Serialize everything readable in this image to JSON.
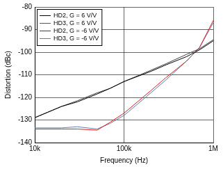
{
  "chart_data": {
    "type": "line",
    "x_label": "Frequency (Hz)",
    "y_label": "Distortion (dBc)",
    "log": "x",
    "grid": true,
    "legend": "top-left",
    "xlim": [
      10000,
      1000000
    ],
    "xticks": [
      {
        "value": 10000,
        "label": "10k"
      },
      {
        "value": 100000,
        "label": "100k"
      },
      {
        "value": 1000000,
        "label": "1M"
      }
    ],
    "ylim": [
      -140,
      -80
    ],
    "yticks": [
      -140,
      -130,
      -120,
      -110,
      -100,
      -90,
      -80
    ],
    "x": [
      10000,
      20000,
      30000,
      50000,
      70000,
      100000,
      200000,
      300000,
      500000,
      700000,
      1000000
    ],
    "series": [
      {
        "name": "HD2, G = 6 V/V",
        "color": "#000000",
        "values": [
          -129,
          -124,
          -122,
          -118.5,
          -116,
          -113,
          -108.5,
          -105.5,
          -102,
          -99,
          -95
        ]
      },
      {
        "name": "HD3, G = 6 V/V",
        "color": "#e31a1c",
        "values": [
          -134,
          -134,
          -134,
          -134.5,
          -131,
          -127,
          -117,
          -111,
          -104,
          -98,
          -86
        ]
      },
      {
        "name": "HD2, G = -6 V/V",
        "color": "#404040",
        "values": [
          -129,
          -124,
          -121.5,
          -118,
          -116,
          -113,
          -108,
          -105,
          -101,
          -98.5,
          -94.5
        ]
      },
      {
        "name": "HD3, G = -6 V/V",
        "color": "#5b7fa6",
        "values": [
          -133.5,
          -133.5,
          -133,
          -134,
          -131.5,
          -128,
          -118,
          -112,
          -104,
          -98,
          -87
        ]
      }
    ]
  }
}
